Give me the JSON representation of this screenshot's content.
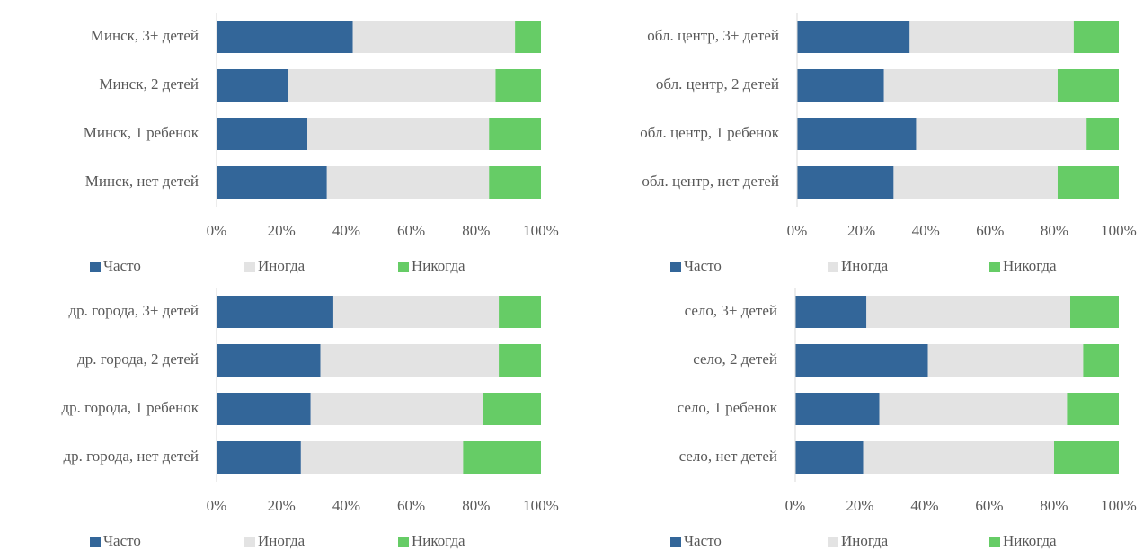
{
  "chart_data": [
    {
      "type": "bar",
      "orientation": "horizontal",
      "stacked": true,
      "categories": [
        "Минск, 3+ детей",
        "Минск, 2 детей",
        "Минск, 1 ребенок",
        "Минск, нет детей"
      ],
      "series": [
        {
          "name": "Часто",
          "color": "#336699",
          "values": [
            42,
            22,
            28,
            34
          ]
        },
        {
          "name": "Иногда",
          "color": "#e3e3e3",
          "values": [
            50,
            64,
            56,
            50
          ]
        },
        {
          "name": "Никогда",
          "color": "#66cc66",
          "values": [
            8,
            14,
            16,
            16
          ]
        }
      ],
      "xlim": [
        0,
        100
      ],
      "xticks": [
        {
          "value": 0,
          "label": "0%"
        },
        {
          "value": 20,
          "label": "20%"
        },
        {
          "value": 40,
          "label": "40%"
        },
        {
          "value": 60,
          "label": "60%"
        },
        {
          "value": 80,
          "label": "80%"
        },
        {
          "value": 100,
          "label": "100%"
        }
      ],
      "legend": "bottom"
    },
    {
      "type": "bar",
      "orientation": "horizontal",
      "stacked": true,
      "categories": [
        "обл. центр, 3+ детей",
        "обл. центр, 2 детей",
        "обл. центр, 1 ребенок",
        "обл. центр, нет детей"
      ],
      "series": [
        {
          "name": "Часто",
          "color": "#336699",
          "values": [
            35,
            27,
            37,
            30
          ]
        },
        {
          "name": "Иногда",
          "color": "#e3e3e3",
          "values": [
            51,
            54,
            53,
            51
          ]
        },
        {
          "name": "Никогда",
          "color": "#66cc66",
          "values": [
            14,
            19,
            10,
            19
          ]
        }
      ],
      "xlim": [
        0,
        100
      ],
      "xticks": [
        {
          "value": 0,
          "label": "0%"
        },
        {
          "value": 20,
          "label": "20%"
        },
        {
          "value": 40,
          "label": "40%"
        },
        {
          "value": 60,
          "label": "60%"
        },
        {
          "value": 80,
          "label": "80%"
        },
        {
          "value": 100,
          "label": "100%"
        }
      ],
      "legend": "bottom"
    },
    {
      "type": "bar",
      "orientation": "horizontal",
      "stacked": true,
      "categories": [
        "др. города, 3+ детей",
        "др. города, 2 детей",
        "др. города, 1 ребенок",
        "др. города, нет детей"
      ],
      "series": [
        {
          "name": "Часто",
          "color": "#336699",
          "values": [
            36,
            32,
            29,
            26
          ]
        },
        {
          "name": "Иногда",
          "color": "#e3e3e3",
          "values": [
            51,
            55,
            53,
            50
          ]
        },
        {
          "name": "Никогда",
          "color": "#66cc66",
          "values": [
            13,
            13,
            18,
            24
          ]
        }
      ],
      "xlim": [
        0,
        100
      ],
      "xticks": [
        {
          "value": 0,
          "label": "0%"
        },
        {
          "value": 20,
          "label": "20%"
        },
        {
          "value": 40,
          "label": "40%"
        },
        {
          "value": 60,
          "label": "60%"
        },
        {
          "value": 80,
          "label": "80%"
        },
        {
          "value": 100,
          "label": "100%"
        }
      ],
      "legend": "bottom"
    },
    {
      "type": "bar",
      "orientation": "horizontal",
      "stacked": true,
      "categories": [
        "село, 3+ детей",
        "село, 2 детей",
        "село, 1 ребенок",
        "село, нет детей"
      ],
      "series": [
        {
          "name": "Часто",
          "color": "#336699",
          "values": [
            22,
            41,
            26,
            21
          ]
        },
        {
          "name": "Иногда",
          "color": "#e3e3e3",
          "values": [
            63,
            48,
            58,
            59
          ]
        },
        {
          "name": "Никогда",
          "color": "#66cc66",
          "values": [
            15,
            11,
            16,
            20
          ]
        }
      ],
      "xlim": [
        0,
        100
      ],
      "xticks": [
        {
          "value": 0,
          "label": "0%"
        },
        {
          "value": 20,
          "label": "20%"
        },
        {
          "value": 40,
          "label": "40%"
        },
        {
          "value": 60,
          "label": "60%"
        },
        {
          "value": 80,
          "label": "80%"
        },
        {
          "value": 100,
          "label": "100%"
        }
      ],
      "legend": "bottom"
    }
  ]
}
